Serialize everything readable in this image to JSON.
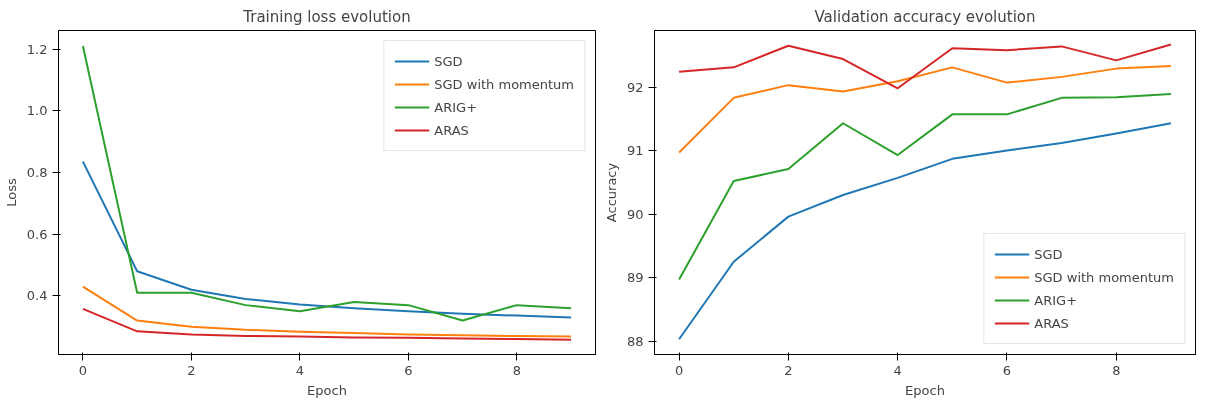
{
  "chart_data": [
    {
      "type": "line",
      "title": "Training loss evolution",
      "xlabel": "Epoch",
      "ylabel": "Loss",
      "x": [
        0,
        1,
        2,
        3,
        4,
        5,
        6,
        7,
        8,
        9
      ],
      "xlim": [
        -0.45,
        9.45
      ],
      "xticks": [
        0,
        2,
        4,
        6,
        8
      ],
      "ylim": [
        0.21,
        1.26
      ],
      "yticks": [
        0.4,
        0.6,
        0.8,
        {
          "value": 1.0,
          "label": "1.0"
        },
        1.2
      ],
      "grid": false,
      "legend": "top right",
      "series": [
        {
          "name": "SGD",
          "color": "#1f77b4",
          "values": [
            0.835,
            0.48,
            0.42,
            0.39,
            0.372,
            0.36,
            0.35,
            0.342,
            0.336,
            0.33
          ]
        },
        {
          "name": "SGD with momentum",
          "color": "#ff7f0e",
          "values": [
            0.43,
            0.32,
            0.3,
            0.29,
            0.284,
            0.28,
            0.275,
            0.272,
            0.27,
            0.268
          ]
        },
        {
          "name": "ARIG+",
          "color": "#2ca02c",
          "values": [
            1.21,
            0.41,
            0.41,
            0.37,
            0.35,
            0.38,
            0.37,
            0.32,
            0.37,
            0.36
          ]
        },
        {
          "name": "ARAS",
          "color": "#d62728",
          "values": [
            0.358,
            0.285,
            0.275,
            0.27,
            0.268,
            0.265,
            0.264,
            0.262,
            0.26,
            0.258
          ]
        }
      ]
    },
    {
      "type": "line",
      "title": "Validation accuracy evolution",
      "xlabel": "Epoch",
      "ylabel": "Accuracy",
      "x": [
        0,
        1,
        2,
        3,
        4,
        5,
        6,
        7,
        8,
        9
      ],
      "xlim": [
        -0.45,
        9.45
      ],
      "xticks": [
        0,
        2,
        4,
        6,
        8
      ],
      "ylim": [
        87.79,
        92.89
      ],
      "yticks": [
        88,
        89,
        90,
        91,
        92
      ],
      "grid": false,
      "legend": "bottom right",
      "series": [
        {
          "name": "SGD",
          "color": "#1f77b4",
          "values": [
            88.03,
            89.25,
            89.96,
            90.3,
            90.57,
            90.87,
            91.0,
            91.12,
            91.27,
            91.43
          ]
        },
        {
          "name": "SGD with momentum",
          "color": "#ff7f0e",
          "values": [
            90.97,
            91.83,
            92.03,
            91.93,
            92.09,
            92.31,
            92.07,
            92.16,
            92.29,
            92.33
          ]
        },
        {
          "name": "ARIG+",
          "color": "#2ca02c",
          "values": [
            88.97,
            90.52,
            90.71,
            91.43,
            90.93,
            91.57,
            91.57,
            91.83,
            91.84,
            91.89
          ]
        },
        {
          "name": "ARAS",
          "color": "#d62728",
          "values": [
            92.24,
            92.31,
            92.65,
            92.44,
            91.98,
            92.61,
            92.58,
            92.64,
            92.42,
            92.67
          ]
        }
      ]
    }
  ]
}
